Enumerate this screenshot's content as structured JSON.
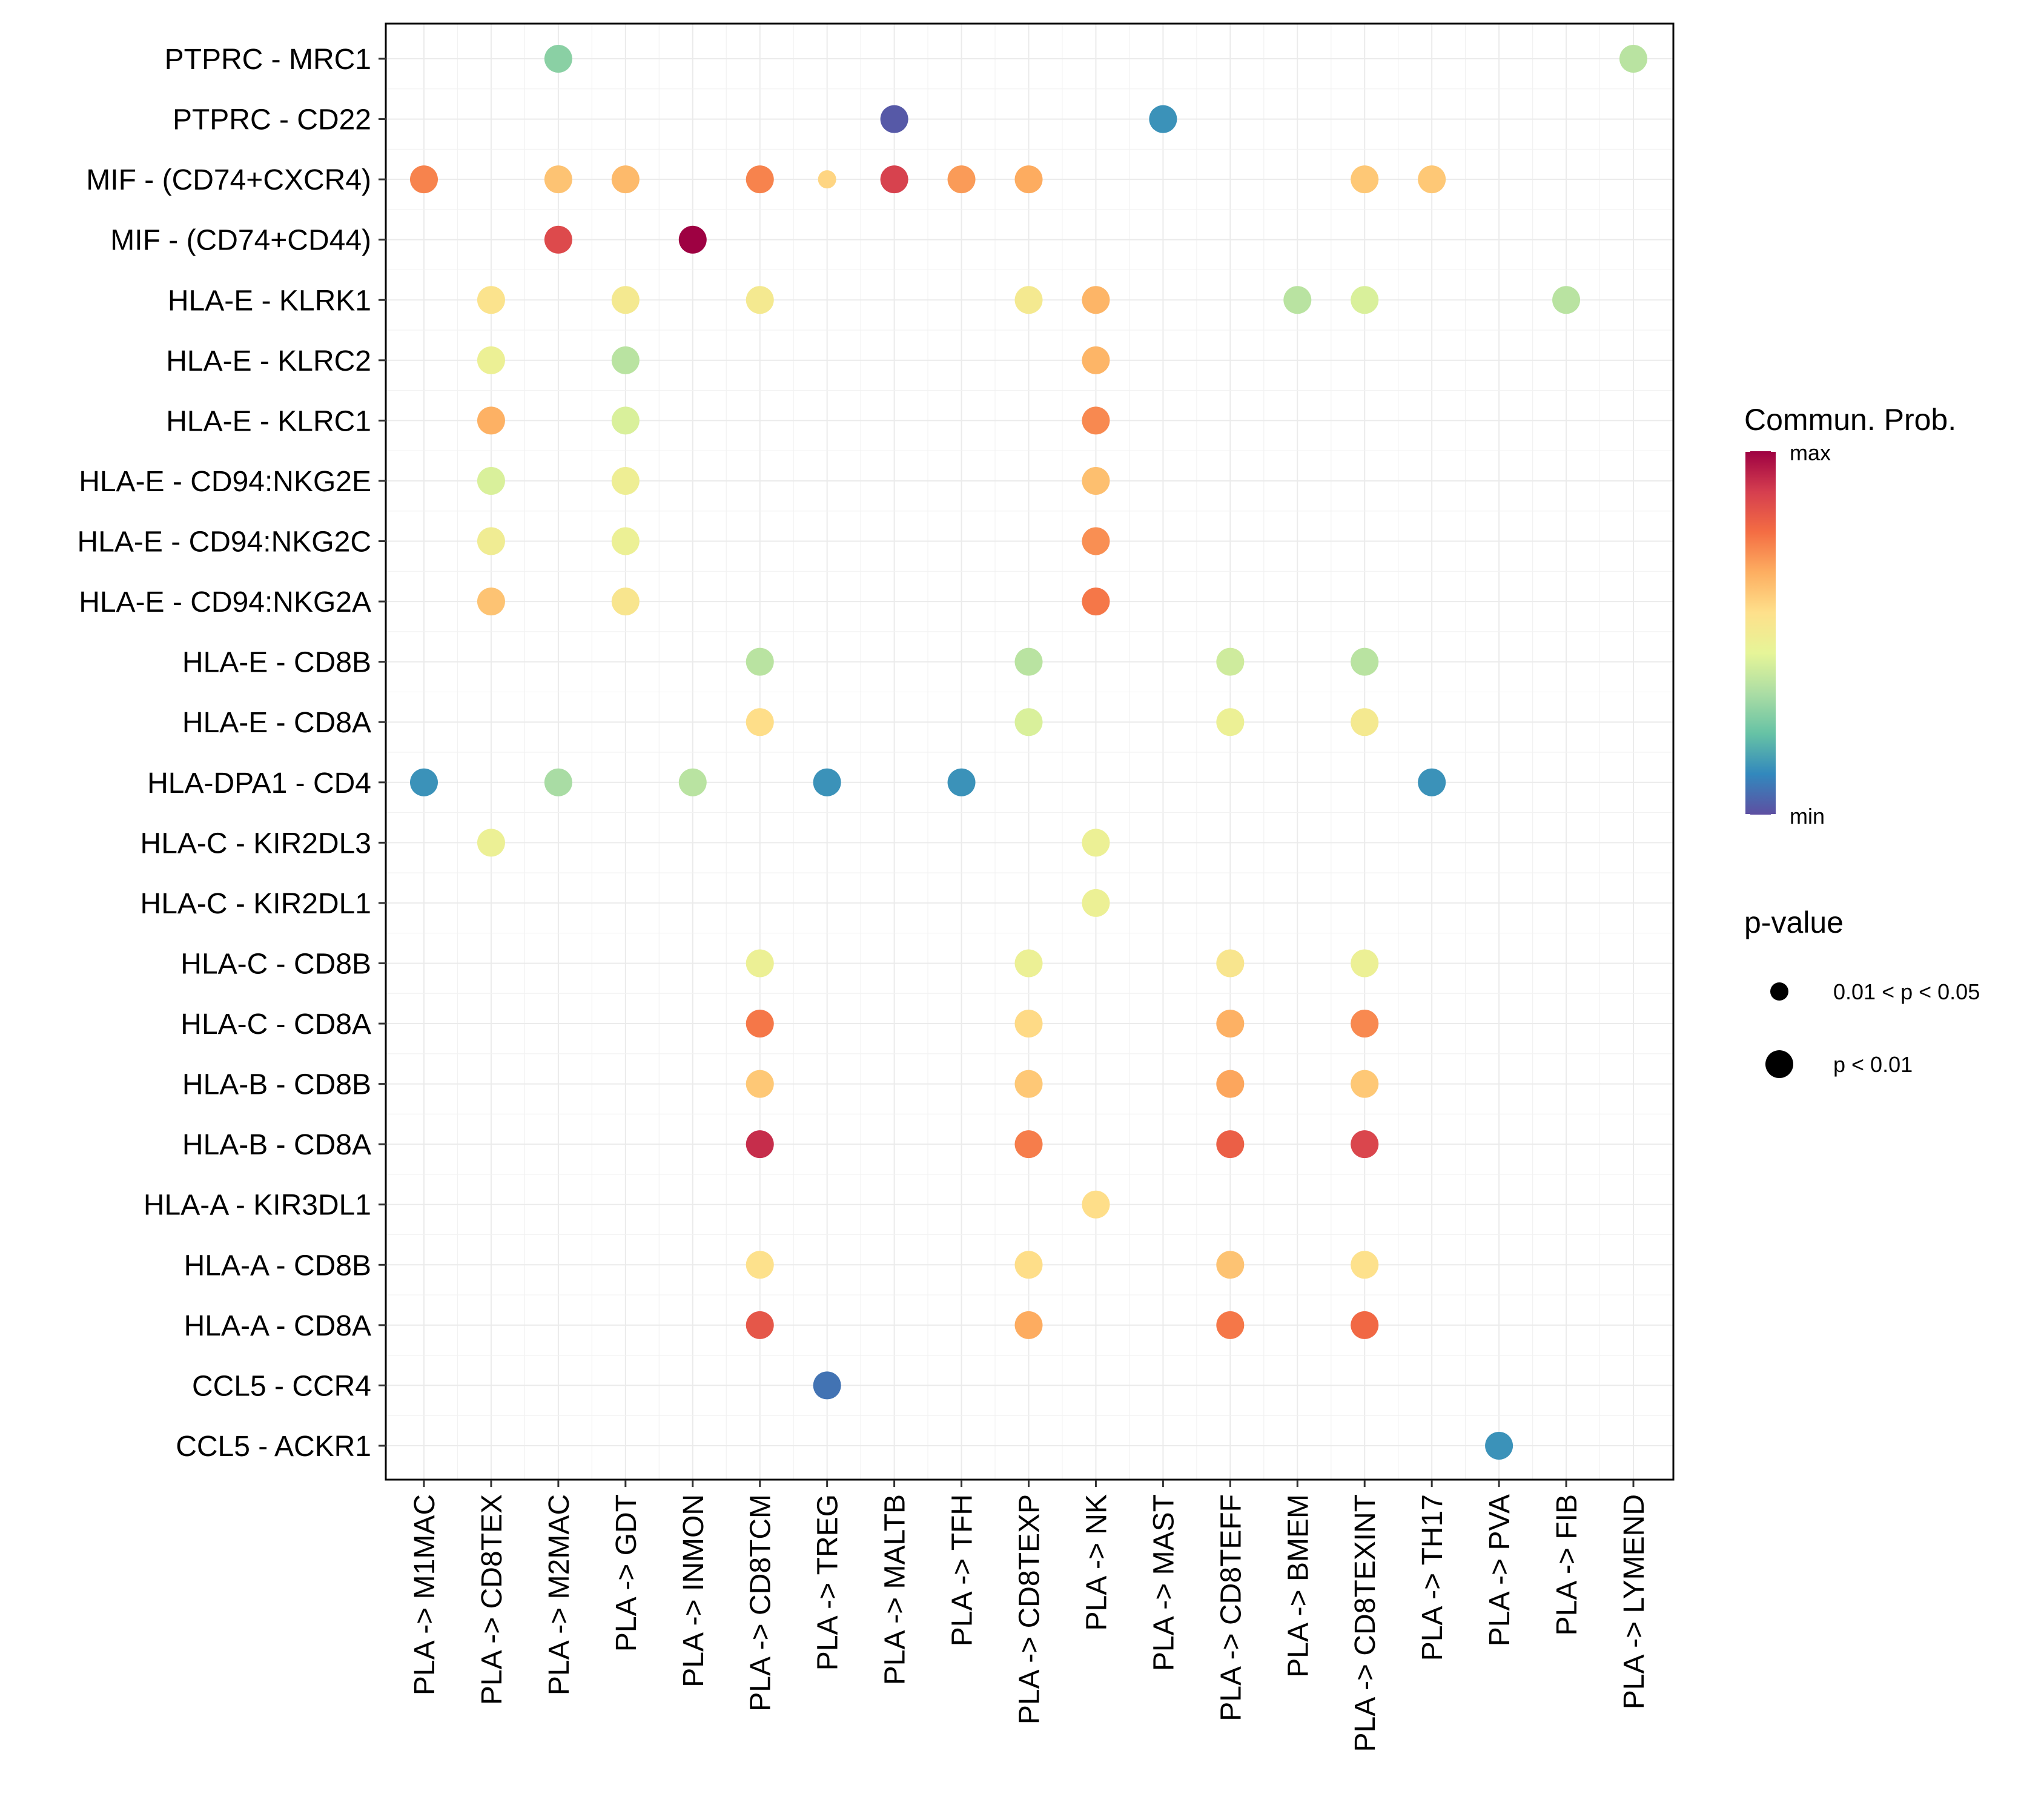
{
  "chart_data": {
    "type": "scatter",
    "subtype": "dot-plot",
    "title": "",
    "xlabel": "",
    "ylabel": "",
    "grid": true,
    "legend_position": "right",
    "x_categories": [
      "PLA -> M1MAC",
      "PLA -> CD8TEX",
      "PLA -> M2MAC",
      "PLA -> GDT",
      "PLA -> INMON",
      "PLA -> CD8TCM",
      "PLA -> TREG",
      "PLA -> MALTB",
      "PLA -> TFH",
      "PLA -> CD8TEXP",
      "PLA -> NK",
      "PLA -> MAST",
      "PLA -> CD8TEFF",
      "PLA -> BMEM",
      "PLA -> CD8TEXINT",
      "PLA -> TH17",
      "PLA -> PVA",
      "PLA -> FIB",
      "PLA -> LYMEND"
    ],
    "y_categories": [
      "PTPRC - MRC1",
      "PTPRC - CD22",
      "MIF - (CD74+CXCR4)",
      "MIF - (CD74+CD44)",
      "HLA-E - KLRK1",
      "HLA-E - KLRC2",
      "HLA-E - KLRC1",
      "HLA-E - CD94:NKG2E",
      "HLA-E - CD94:NKG2C",
      "HLA-E - CD94:NKG2A",
      "HLA-E - CD8B",
      "HLA-E - CD8A",
      "HLA-DPA1 - CD4",
      "HLA-C - KIR2DL3",
      "HLA-C - KIR2DL1",
      "HLA-C - CD8B",
      "HLA-C - CD8A",
      "HLA-B - CD8B",
      "HLA-B - CD8A",
      "HLA-A - KIR3DL1",
      "HLA-A - CD8B",
      "HLA-A - CD8A",
      "CCL5 - CCR4",
      "CCL5 - ACKR1"
    ],
    "color_legend": {
      "title": "Commun. Prob.",
      "max_label": "max",
      "min_label": "min",
      "palette": [
        "#5E4FA2",
        "#3288BD",
        "#66C2A5",
        "#ABDDA4",
        "#E6F598",
        "#FEE08B",
        "#FDAE61",
        "#F46D43",
        "#D53E4F",
        "#9E0142"
      ]
    },
    "size_legend": {
      "title": "p-value",
      "items": [
        {
          "label": "0.01 < p < 0.05",
          "level": "small"
        },
        {
          "label": "p < 0.01",
          "level": "large"
        }
      ]
    },
    "points_note": "prob is relative commun. prob. on 0 (min) to 1 (max) scale, estimated from color",
    "points": [
      {
        "x": "PLA -> M2MAC",
        "y": "PTPRC - MRC1",
        "prob": 0.28,
        "p": "p < 0.01"
      },
      {
        "x": "PLA -> LYMEND",
        "y": "PTPRC - MRC1",
        "prob": 0.36,
        "p": "p < 0.01"
      },
      {
        "x": "PLA -> MALTB",
        "y": "PTPRC - CD22",
        "prob": 0.02,
        "p": "p < 0.01"
      },
      {
        "x": "PLA -> MAST",
        "y": "PTPRC - CD22",
        "prob": 0.13,
        "p": "p < 0.01"
      },
      {
        "x": "PLA -> M1MAC",
        "y": "MIF - (CD74+CXCR4)",
        "prob": 0.74,
        "p": "p < 0.01"
      },
      {
        "x": "PLA -> M2MAC",
        "y": "MIF - (CD74+CXCR4)",
        "prob": 0.62,
        "p": "p < 0.01"
      },
      {
        "x": "PLA -> GDT",
        "y": "MIF - (CD74+CXCR4)",
        "prob": 0.64,
        "p": "p < 0.01"
      },
      {
        "x": "PLA -> CD8TCM",
        "y": "MIF - (CD74+CXCR4)",
        "prob": 0.74,
        "p": "p < 0.01"
      },
      {
        "x": "PLA -> TREG",
        "y": "MIF - (CD74+CXCR4)",
        "prob": 0.58,
        "p": "0.01 < p < 0.05"
      },
      {
        "x": "PLA -> MALTB",
        "y": "MIF - (CD74+CXCR4)",
        "prob": 0.88,
        "p": "p < 0.01"
      },
      {
        "x": "PLA -> TFH",
        "y": "MIF - (CD74+CXCR4)",
        "prob": 0.7,
        "p": "p < 0.01"
      },
      {
        "x": "PLA -> CD8TEXP",
        "y": "MIF - (CD74+CXCR4)",
        "prob": 0.67,
        "p": "p < 0.01"
      },
      {
        "x": "PLA -> CD8TEXINT",
        "y": "MIF - (CD74+CXCR4)",
        "prob": 0.61,
        "p": "p < 0.01"
      },
      {
        "x": "PLA -> TH17",
        "y": "MIF - (CD74+CXCR4)",
        "prob": 0.61,
        "p": "p < 0.01"
      },
      {
        "x": "PLA -> M2MAC",
        "y": "MIF - (CD74+CD44)",
        "prob": 0.86,
        "p": "p < 0.01"
      },
      {
        "x": "PLA -> INMON",
        "y": "MIF - (CD74+CD44)",
        "prob": 1.0,
        "p": "p < 0.01"
      },
      {
        "x": "PLA -> CD8TEX",
        "y": "HLA-E - KLRK1",
        "prob": 0.54,
        "p": "p < 0.01"
      },
      {
        "x": "PLA -> GDT",
        "y": "HLA-E - KLRK1",
        "prob": 0.51,
        "p": "p < 0.01"
      },
      {
        "x": "PLA -> CD8TCM",
        "y": "HLA-E - KLRK1",
        "prob": 0.51,
        "p": "p < 0.01"
      },
      {
        "x": "PLA -> CD8TEXP",
        "y": "HLA-E - KLRK1",
        "prob": 0.51,
        "p": "p < 0.01"
      },
      {
        "x": "PLA -> NK",
        "y": "HLA-E - KLRK1",
        "prob": 0.65,
        "p": "p < 0.01"
      },
      {
        "x": "PLA -> BMEM",
        "y": "HLA-E - KLRK1",
        "prob": 0.36,
        "p": "p < 0.01"
      },
      {
        "x": "PLA -> CD8TEXINT",
        "y": "HLA-E - KLRK1",
        "prob": 0.42,
        "p": "p < 0.01"
      },
      {
        "x": "PLA -> FIB",
        "y": "HLA-E - KLRK1",
        "prob": 0.36,
        "p": "p < 0.01"
      },
      {
        "x": "PLA -> CD8TEX",
        "y": "HLA-E - KLRC2",
        "prob": 0.47,
        "p": "p < 0.01"
      },
      {
        "x": "PLA -> GDT",
        "y": "HLA-E - KLRC2",
        "prob": 0.36,
        "p": "p < 0.01"
      },
      {
        "x": "PLA -> NK",
        "y": "HLA-E - KLRC2",
        "prob": 0.65,
        "p": "p < 0.01"
      },
      {
        "x": "PLA -> CD8TEX",
        "y": "HLA-E - KLRC1",
        "prob": 0.66,
        "p": "p < 0.01"
      },
      {
        "x": "PLA -> GDT",
        "y": "HLA-E - KLRC1",
        "prob": 0.42,
        "p": "p < 0.01"
      },
      {
        "x": "PLA -> NK",
        "y": "HLA-E - KLRC1",
        "prob": 0.73,
        "p": "p < 0.01"
      },
      {
        "x": "PLA -> CD8TEX",
        "y": "HLA-E - CD94:NKG2E",
        "prob": 0.42,
        "p": "p < 0.01"
      },
      {
        "x": "PLA -> GDT",
        "y": "HLA-E - CD94:NKG2E",
        "prob": 0.48,
        "p": "p < 0.01"
      },
      {
        "x": "PLA -> NK",
        "y": "HLA-E - CD94:NKG2E",
        "prob": 0.63,
        "p": "p < 0.01"
      },
      {
        "x": "PLA -> CD8TEX",
        "y": "HLA-E - CD94:NKG2C",
        "prob": 0.49,
        "p": "p < 0.01"
      },
      {
        "x": "PLA -> GDT",
        "y": "HLA-E - CD94:NKG2C",
        "prob": 0.47,
        "p": "p < 0.01"
      },
      {
        "x": "PLA -> NK",
        "y": "HLA-E - CD94:NKG2C",
        "prob": 0.72,
        "p": "p < 0.01"
      },
      {
        "x": "PLA -> CD8TEX",
        "y": "HLA-E - CD94:NKG2A",
        "prob": 0.62,
        "p": "p < 0.01"
      },
      {
        "x": "PLA -> GDT",
        "y": "HLA-E - CD94:NKG2A",
        "prob": 0.53,
        "p": "p < 0.01"
      },
      {
        "x": "PLA -> NK",
        "y": "HLA-E - CD94:NKG2A",
        "prob": 0.76,
        "p": "p < 0.01"
      },
      {
        "x": "PLA -> CD8TCM",
        "y": "HLA-E - CD8B",
        "prob": 0.36,
        "p": "p < 0.01"
      },
      {
        "x": "PLA -> CD8TEXP",
        "y": "HLA-E - CD8B",
        "prob": 0.36,
        "p": "p < 0.01"
      },
      {
        "x": "PLA -> CD8TEFF",
        "y": "HLA-E - CD8B",
        "prob": 0.4,
        "p": "p < 0.01"
      },
      {
        "x": "PLA -> CD8TEXINT",
        "y": "HLA-E - CD8B",
        "prob": 0.36,
        "p": "p < 0.01"
      },
      {
        "x": "PLA -> CD8TCM",
        "y": "HLA-E - CD8A",
        "prob": 0.56,
        "p": "p < 0.01"
      },
      {
        "x": "PLA -> CD8TEXP",
        "y": "HLA-E - CD8A",
        "prob": 0.42,
        "p": "p < 0.01"
      },
      {
        "x": "PLA -> CD8TEFF",
        "y": "HLA-E - CD8A",
        "prob": 0.47,
        "p": "p < 0.01"
      },
      {
        "x": "PLA -> CD8TEXINT",
        "y": "HLA-E - CD8A",
        "prob": 0.51,
        "p": "p < 0.01"
      },
      {
        "x": "PLA -> M1MAC",
        "y": "HLA-DPA1 - CD4",
        "prob": 0.13,
        "p": "p < 0.01"
      },
      {
        "x": "PLA -> M2MAC",
        "y": "HLA-DPA1 - CD4",
        "prob": 0.33,
        "p": "p < 0.01"
      },
      {
        "x": "PLA -> INMON",
        "y": "HLA-DPA1 - CD4",
        "prob": 0.36,
        "p": "p < 0.01"
      },
      {
        "x": "PLA -> TREG",
        "y": "HLA-DPA1 - CD4",
        "prob": 0.13,
        "p": "p < 0.01"
      },
      {
        "x": "PLA -> TFH",
        "y": "HLA-DPA1 - CD4",
        "prob": 0.13,
        "p": "p < 0.01"
      },
      {
        "x": "PLA -> TH17",
        "y": "HLA-DPA1 - CD4",
        "prob": 0.13,
        "p": "p < 0.01"
      },
      {
        "x": "PLA -> CD8TEX",
        "y": "HLA-C - KIR2DL3",
        "prob": 0.47,
        "p": "p < 0.01"
      },
      {
        "x": "PLA -> NK",
        "y": "HLA-C - KIR2DL3",
        "prob": 0.47,
        "p": "p < 0.01"
      },
      {
        "x": "PLA -> NK",
        "y": "HLA-C - KIR2DL1",
        "prob": 0.47,
        "p": "p < 0.01"
      },
      {
        "x": "PLA -> CD8TCM",
        "y": "HLA-C - CD8B",
        "prob": 0.47,
        "p": "p < 0.01"
      },
      {
        "x": "PLA -> CD8TEXP",
        "y": "HLA-C - CD8B",
        "prob": 0.47,
        "p": "p < 0.01"
      },
      {
        "x": "PLA -> CD8TEFF",
        "y": "HLA-C - CD8B",
        "prob": 0.53,
        "p": "p < 0.01"
      },
      {
        "x": "PLA -> CD8TEXINT",
        "y": "HLA-C - CD8B",
        "prob": 0.47,
        "p": "p < 0.01"
      },
      {
        "x": "PLA -> CD8TCM",
        "y": "HLA-C - CD8A",
        "prob": 0.76,
        "p": "p < 0.01"
      },
      {
        "x": "PLA -> CD8TEXP",
        "y": "HLA-C - CD8A",
        "prob": 0.57,
        "p": "p < 0.01"
      },
      {
        "x": "PLA -> CD8TEFF",
        "y": "HLA-C - CD8A",
        "prob": 0.66,
        "p": "p < 0.01"
      },
      {
        "x": "PLA -> CD8TEXINT",
        "y": "HLA-C - CD8A",
        "prob": 0.73,
        "p": "p < 0.01"
      },
      {
        "x": "PLA -> CD8TCM",
        "y": "HLA-B - CD8B",
        "prob": 0.61,
        "p": "p < 0.01"
      },
      {
        "x": "PLA -> CD8TEXP",
        "y": "HLA-B - CD8B",
        "prob": 0.61,
        "p": "p < 0.01"
      },
      {
        "x": "PLA -> CD8TEFF",
        "y": "HLA-B - CD8B",
        "prob": 0.68,
        "p": "p < 0.01"
      },
      {
        "x": "PLA -> CD8TEXINT",
        "y": "HLA-B - CD8B",
        "prob": 0.61,
        "p": "p < 0.01"
      },
      {
        "x": "PLA -> CD8TCM",
        "y": "HLA-B - CD8A",
        "prob": 0.92,
        "p": "p < 0.01"
      },
      {
        "x": "PLA -> CD8TEXP",
        "y": "HLA-B - CD8A",
        "prob": 0.75,
        "p": "p < 0.01"
      },
      {
        "x": "PLA -> CD8TEFF",
        "y": "HLA-B - CD8A",
        "prob": 0.81,
        "p": "p < 0.01"
      },
      {
        "x": "PLA -> CD8TEXINT",
        "y": "HLA-B - CD8A",
        "prob": 0.87,
        "p": "p < 0.01"
      },
      {
        "x": "PLA -> NK",
        "y": "HLA-A - KIR3DL1",
        "prob": 0.56,
        "p": "p < 0.01"
      },
      {
        "x": "PLA -> CD8TCM",
        "y": "HLA-A - CD8B",
        "prob": 0.55,
        "p": "p < 0.01"
      },
      {
        "x": "PLA -> CD8TEXP",
        "y": "HLA-A - CD8B",
        "prob": 0.56,
        "p": "p < 0.01"
      },
      {
        "x": "PLA -> CD8TEFF",
        "y": "HLA-A - CD8B",
        "prob": 0.62,
        "p": "p < 0.01"
      },
      {
        "x": "PLA -> CD8TEXINT",
        "y": "HLA-A - CD8B",
        "prob": 0.55,
        "p": "p < 0.01"
      },
      {
        "x": "PLA -> CD8TCM",
        "y": "HLA-A - CD8A",
        "prob": 0.83,
        "p": "p < 0.01"
      },
      {
        "x": "PLA -> CD8TEXP",
        "y": "HLA-A - CD8A",
        "prob": 0.67,
        "p": "p < 0.01"
      },
      {
        "x": "PLA -> CD8TEFF",
        "y": "HLA-A - CD8A",
        "prob": 0.76,
        "p": "p < 0.01"
      },
      {
        "x": "PLA -> CD8TEXINT",
        "y": "HLA-A - CD8A",
        "prob": 0.79,
        "p": "p < 0.01"
      },
      {
        "x": "PLA -> TREG",
        "y": "CCL5 - CCR4",
        "prob": 0.07,
        "p": "p < 0.01"
      },
      {
        "x": "PLA -> PVA",
        "y": "CCL5 - ACKR1",
        "prob": 0.13,
        "p": "p < 0.01"
      }
    ]
  }
}
